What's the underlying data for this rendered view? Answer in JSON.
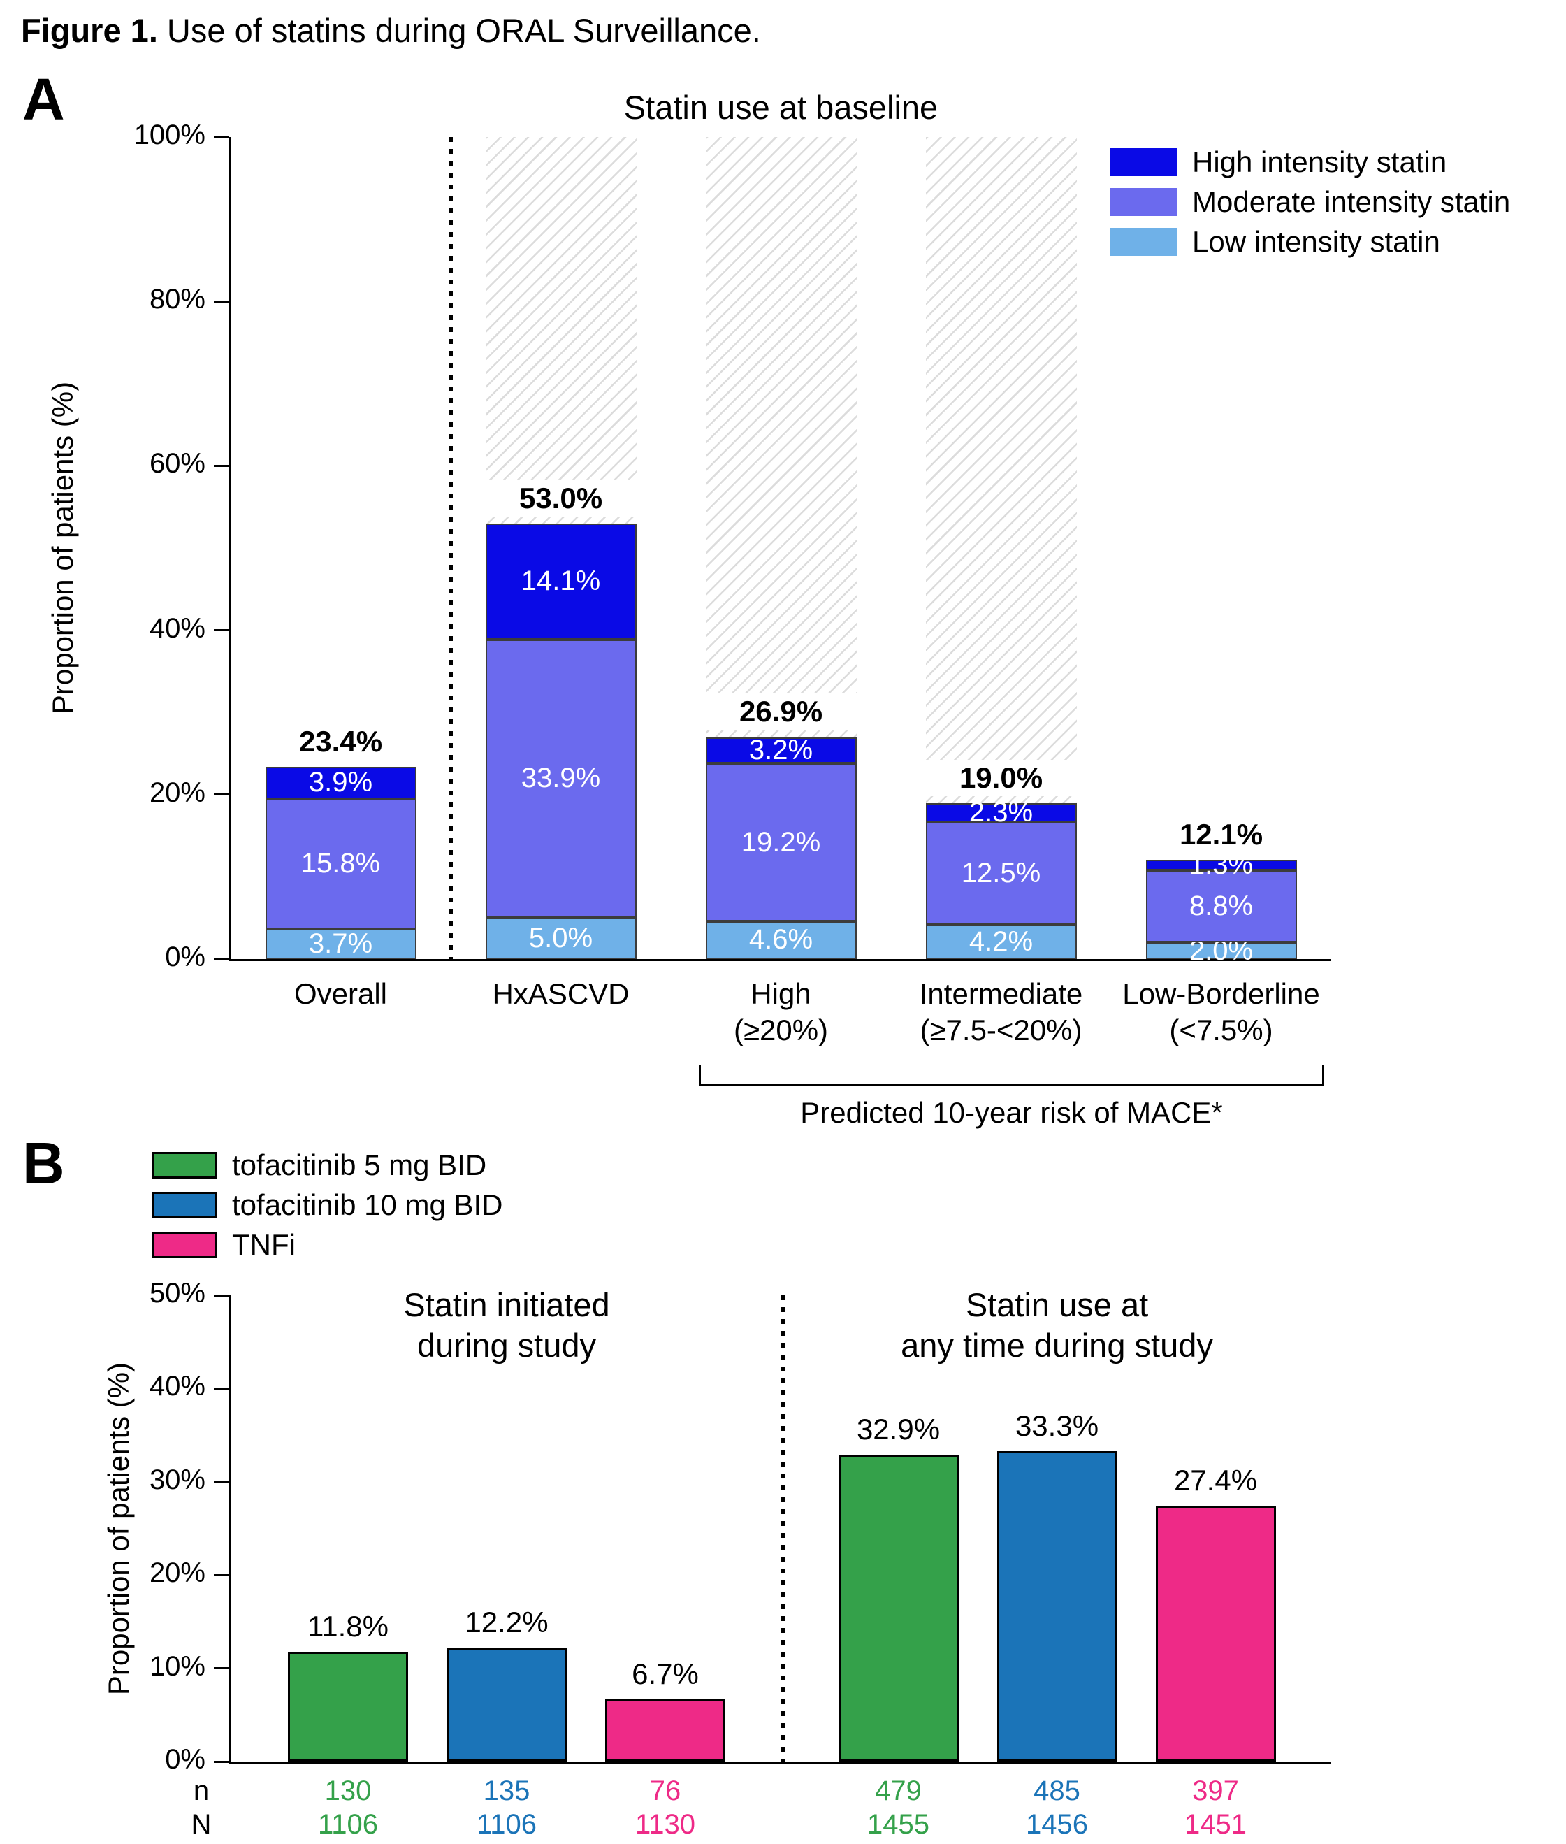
{
  "figure_title": {
    "prefix": "Figure 1.",
    "rest": " Use of statins during ORAL Surveillance."
  },
  "panels": [
    {
      "label": "A"
    },
    {
      "label": "B"
    }
  ],
  "chart_data": [
    {
      "id": "A",
      "type": "stacked-bar",
      "title": "Statin use at baseline",
      "ylabel": "Proportion of patients (%)",
      "ylim": [
        0,
        100
      ],
      "yticks": [
        0,
        20,
        40,
        60,
        80,
        100
      ],
      "legend_position": "top-right",
      "categories": [
        {
          "lines": [
            "Overall"
          ]
        },
        {
          "lines": [
            "HxASCVD"
          ]
        },
        {
          "lines": [
            "High",
            "(≥20%)"
          ]
        },
        {
          "lines": [
            "Intermediate",
            "(≥7.5-<20%)"
          ]
        },
        {
          "lines": [
            "Low-Borderline",
            "(<7.5%)"
          ]
        }
      ],
      "series": [
        {
          "name": "Low intensity statin",
          "color": "#6fb1e8",
          "values": [
            3.7,
            5.0,
            4.6,
            4.2,
            2.0
          ]
        },
        {
          "name": "Moderate intensity statin",
          "color": "#6b6aee",
          "values": [
            15.8,
            33.9,
            19.2,
            12.5,
            8.8
          ]
        },
        {
          "name": "High intensity statin",
          "color": "#0a0ae6",
          "values": [
            3.9,
            14.1,
            3.2,
            2.3,
            1.3
          ]
        }
      ],
      "totals": [
        23.4,
        53.0,
        26.9,
        19.0,
        12.1
      ],
      "hatched_columns": [
        1,
        2,
        3
      ],
      "divider_after_category": 0,
      "bracket": {
        "from": 2,
        "to": 4,
        "label": "Predicted 10-year risk of MACE*"
      }
    },
    {
      "id": "B",
      "type": "grouped-bar",
      "ylabel": "Proportion of patients (%)",
      "ylim": [
        0,
        50
      ],
      "yticks": [
        0,
        10,
        20,
        30,
        40,
        50
      ],
      "legend_position": "top-left",
      "series": [
        {
          "name": "tofacitinib 5 mg BID",
          "color": "#34a14a"
        },
        {
          "name": "tofacitinib 10 mg BID",
          "color": "#1b74b8"
        },
        {
          "name": "TNFi",
          "color": "#ee2a87"
        }
      ],
      "groups": [
        {
          "title_lines": [
            "Statin initiated",
            "during study"
          ],
          "values": [
            11.8,
            12.2,
            6.7
          ],
          "n": [
            "130",
            "135",
            "76"
          ],
          "N": [
            "1106",
            "1106",
            "1130"
          ]
        },
        {
          "title_lines": [
            "Statin use at",
            "any time during study"
          ],
          "values": [
            32.9,
            33.3,
            27.4
          ],
          "n": [
            "479",
            "485",
            "397"
          ],
          "N": [
            "1455",
            "1456",
            "1451"
          ]
        }
      ],
      "count_row_labels": [
        "n",
        "N"
      ]
    }
  ]
}
